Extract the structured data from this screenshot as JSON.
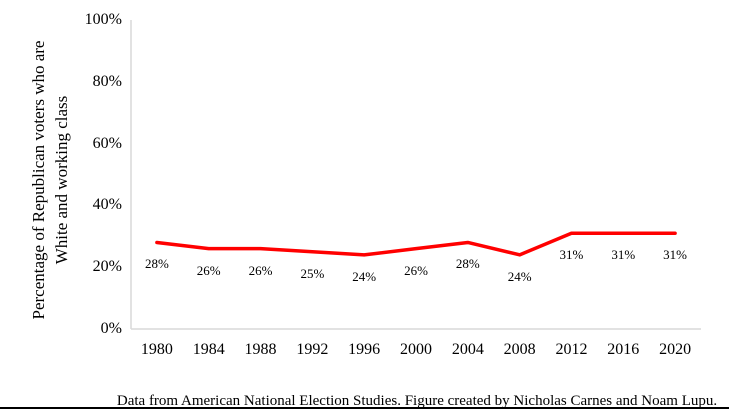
{
  "figure": {
    "caption": "Data from American National Election Studies. Figure created by Nicholas Carnes and Noam Lupu."
  },
  "chart_data": {
    "type": "line",
    "title": "",
    "categories": [
      "1980",
      "1984",
      "1988",
      "1992",
      "1996",
      "2000",
      "2004",
      "2008",
      "2012",
      "2016",
      "2020"
    ],
    "series": [
      {
        "name": "Percentage of Republican voters who are White and working class",
        "values": [
          28,
          26,
          26,
          25,
          24,
          26,
          28,
          24,
          31,
          31,
          31
        ],
        "color": "#ff0000"
      }
    ],
    "data_labels": [
      "28%",
      "26%",
      "26%",
      "25%",
      "24%",
      "26%",
      "28%",
      "24%",
      "31%",
      "31%",
      "31%"
    ],
    "xlabel": "",
    "ylabel": "Percentage of Republican voters who are White and working class",
    "ylabel_lines": [
      "Percentage of Republican voters who are",
      "White and working class"
    ],
    "yticks": [
      "0%",
      "20%",
      "40%",
      "60%",
      "80%",
      "100%"
    ],
    "ytick_values": [
      0,
      20,
      40,
      60,
      80,
      100
    ],
    "ylim": [
      0,
      100
    ],
    "grid": false,
    "legend": "none",
    "axis_color": "#d9d9d9",
    "line_color": "#ff0000",
    "text_color": "#000000"
  }
}
